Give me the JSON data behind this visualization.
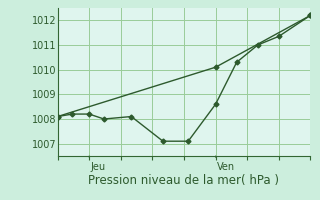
{
  "title": "Pression niveau de la mer( hPa )",
  "bg_color": "#cceedd",
  "plot_bg_color": "#dff5ee",
  "line_color": "#2d5a2d",
  "grid_color": "#99cc99",
  "spine_color": "#336633",
  "ylim": [
    1006.5,
    1012.5
  ],
  "yticks": [
    1007,
    1008,
    1009,
    1010,
    1011,
    1012
  ],
  "xlim": [
    0,
    12
  ],
  "x_jeu_pos": 1.5,
  "x_ven_pos": 7.5,
  "series1_x": [
    0.0,
    0.7,
    1.5,
    2.2,
    3.5,
    5.0,
    6.2,
    7.5,
    8.5,
    9.5,
    10.5,
    12.0
  ],
  "series1_y": [
    1008.1,
    1008.2,
    1008.2,
    1008.0,
    1008.1,
    1007.1,
    1007.1,
    1008.6,
    1010.3,
    1011.0,
    1011.35,
    1012.2
  ],
  "series2_x": [
    0.0,
    7.5,
    12.0
  ],
  "series2_y": [
    1008.1,
    1010.1,
    1012.2
  ],
  "marker": "D",
  "markersize": 2.5,
  "linewidth": 1.0,
  "xlabel_fontsize": 8.5,
  "ytick_fontsize": 7,
  "day_label_fontsize": 7
}
